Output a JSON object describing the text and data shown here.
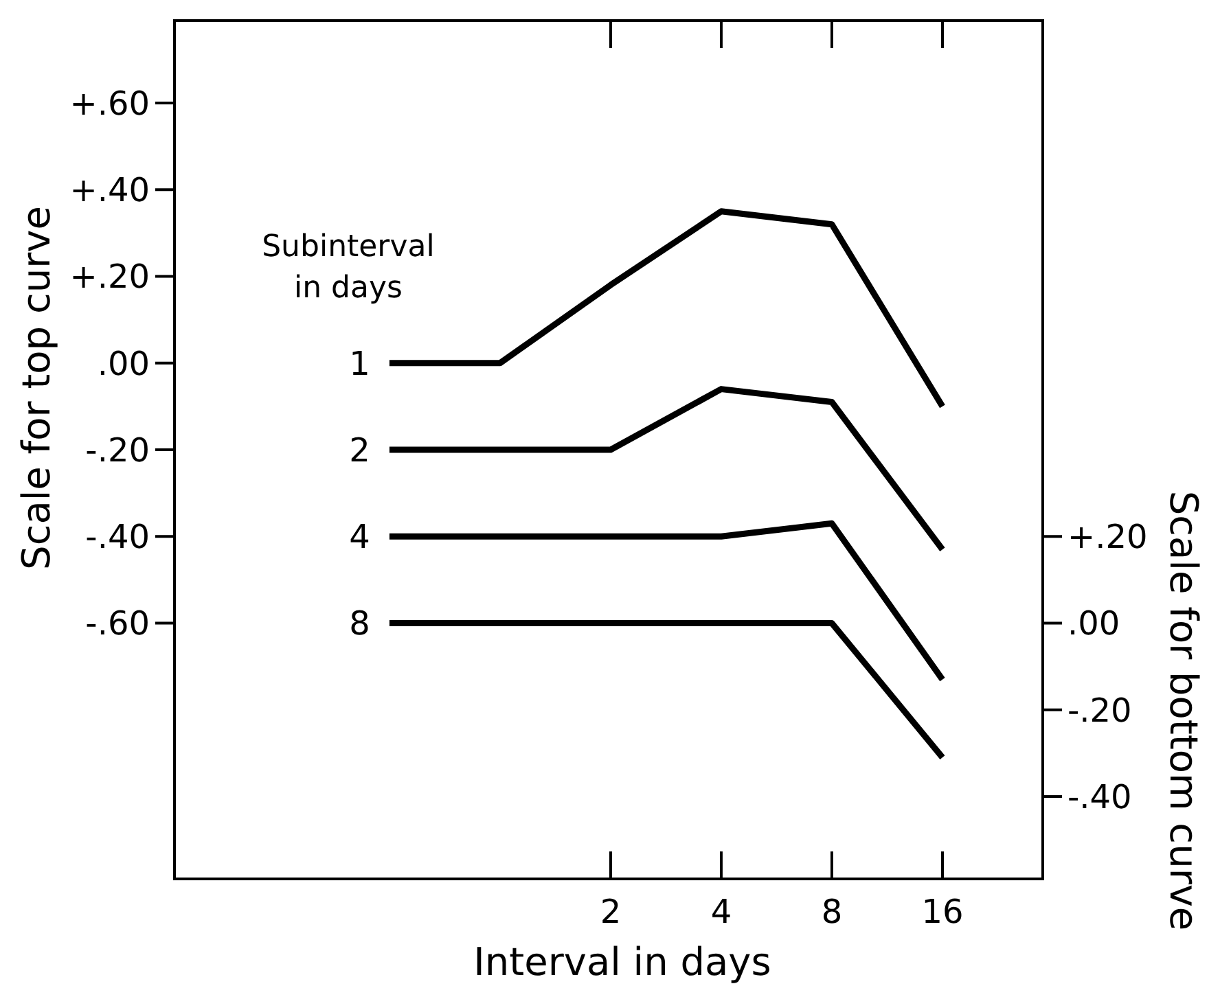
{
  "chart_data": {
    "type": "line",
    "xlabel": "Interval in days",
    "ylabel": "Scale for top curve",
    "y2label": "Scale for bottom curve",
    "legend_title": "Subinterval in days",
    "log": "x",
    "grid": false,
    "marker": "none",
    "line_style": "solid",
    "xlim": [
      0.13,
      30
    ],
    "xticks": [
      2,
      4,
      8,
      16
    ],
    "ylim": [
      -1.19,
      0.79
    ],
    "yticks": [
      {
        "value": 0.6,
        "label": "+.60"
      },
      {
        "value": 0.4,
        "label": "+.40"
      },
      {
        "value": 0.2,
        "label": "+.20"
      },
      {
        "value": 0,
        "label": ".00"
      },
      {
        "value": -0.2,
        "label": "-.20"
      },
      {
        "value": -0.4,
        "label": "-.40"
      },
      {
        "value": -0.6,
        "label": "-.60"
      }
    ],
    "y2lim": [
      -0.59,
      1.39
    ],
    "y2ticks": [
      {
        "value": 0.2,
        "label": "+.20"
      },
      {
        "value": 0,
        "label": ".00"
      },
      {
        "value": -0.2,
        "label": "-.20"
      },
      {
        "value": -0.4,
        "label": "-.40"
      }
    ],
    "series": [
      {
        "name": "1",
        "color": "#000000",
        "x": [
          0.5,
          1,
          2,
          4,
          8,
          16
        ],
        "values": [
          0,
          0,
          0.18,
          0.35,
          0.32,
          -0.1
        ]
      },
      {
        "name": "2",
        "color": "#000000",
        "x": [
          0.5,
          2,
          4,
          8,
          16
        ],
        "values": [
          -0.2,
          -0.2,
          -0.06,
          -0.09,
          -0.43
        ]
      },
      {
        "name": "4",
        "color": "#000000",
        "x": [
          0.5,
          4,
          8,
          16
        ],
        "values": [
          -0.4,
          -0.4,
          -0.37,
          -0.73
        ]
      },
      {
        "name": "8",
        "color": "#000000",
        "axis": "y2",
        "x": [
          0.5,
          8,
          16
        ],
        "values": [
          0,
          0,
          -0.31
        ]
      }
    ]
  }
}
